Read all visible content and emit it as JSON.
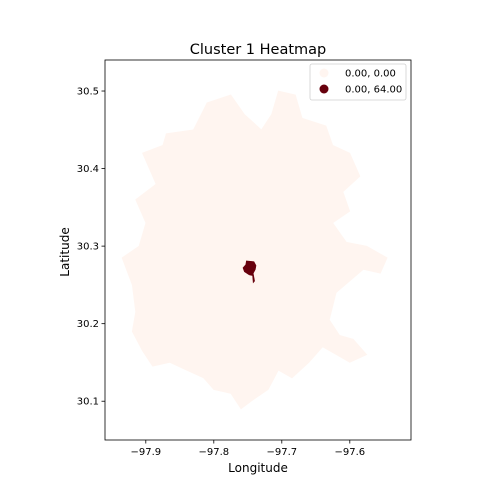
{
  "chart_data": {
    "type": "heatmap",
    "title": "Cluster 1 Heatmap",
    "xlabel": "Longitude",
    "ylabel": "Latitude",
    "xlim": [
      -97.96,
      -97.51
    ],
    "ylim": [
      30.05,
      30.54
    ],
    "xticks": [
      -97.9,
      -97.8,
      -97.7,
      -97.6
    ],
    "xtick_labels": [
      "−97.9",
      "−97.8",
      "−97.7",
      "−97.6"
    ],
    "yticks": [
      30.1,
      30.2,
      30.3,
      30.4,
      30.5
    ],
    "ytick_labels": [
      "30.1",
      "30.2",
      "30.3",
      "30.4",
      "30.5"
    ],
    "grid": false,
    "legend": {
      "placement": "top-right",
      "entries": [
        {
          "label": "0.00,  0.00",
          "color": "#fff5f0"
        },
        {
          "label": "0.00, 64.00",
          "color": "#67000d"
        }
      ]
    },
    "colormap": "Reds",
    "regions": [
      {
        "name": "background-region",
        "value_range": [
          0.0,
          0.0
        ],
        "color": "#fff5f0",
        "outline": [
          [
            -97.915,
            30.215
          ],
          [
            -97.92,
            30.25
          ],
          [
            -97.935,
            30.285
          ],
          [
            -97.91,
            30.3
          ],
          [
            -97.9,
            30.33
          ],
          [
            -97.915,
            30.36
          ],
          [
            -97.885,
            30.38
          ],
          [
            -97.905,
            30.42
          ],
          [
            -97.875,
            30.43
          ],
          [
            -97.87,
            30.445
          ],
          [
            -97.83,
            30.45
          ],
          [
            -97.81,
            30.485
          ],
          [
            -97.775,
            30.495
          ],
          [
            -97.755,
            30.47
          ],
          [
            -97.73,
            30.45
          ],
          [
            -97.715,
            30.47
          ],
          [
            -97.705,
            30.5
          ],
          [
            -97.68,
            30.495
          ],
          [
            -97.67,
            30.465
          ],
          [
            -97.635,
            30.455
          ],
          [
            -97.625,
            30.43
          ],
          [
            -97.6,
            30.42
          ],
          [
            -97.585,
            30.39
          ],
          [
            -97.61,
            30.37
          ],
          [
            -97.6,
            30.345
          ],
          [
            -97.625,
            30.33
          ],
          [
            -97.605,
            30.305
          ],
          [
            -97.575,
            30.3
          ],
          [
            -97.545,
            30.285
          ],
          [
            -97.555,
            30.265
          ],
          [
            -97.58,
            30.27
          ],
          [
            -97.6,
            30.255
          ],
          [
            -97.62,
            30.24
          ],
          [
            -97.63,
            30.205
          ],
          [
            -97.615,
            30.185
          ],
          [
            -97.595,
            30.18
          ],
          [
            -97.575,
            30.16
          ],
          [
            -97.6,
            30.15
          ],
          [
            -97.64,
            30.17
          ],
          [
            -97.66,
            30.15
          ],
          [
            -97.685,
            30.13
          ],
          [
            -97.705,
            30.14
          ],
          [
            -97.72,
            30.115
          ],
          [
            -97.745,
            30.1
          ],
          [
            -97.76,
            30.09
          ],
          [
            -97.775,
            30.11
          ],
          [
            -97.8,
            30.115
          ],
          [
            -97.815,
            30.13
          ],
          [
            -97.84,
            30.14
          ],
          [
            -97.865,
            30.15
          ],
          [
            -97.89,
            30.145
          ],
          [
            -97.905,
            30.165
          ],
          [
            -97.92,
            30.19
          ]
        ]
      },
      {
        "name": "highlight-region",
        "value_range": [
          0.0,
          64.0
        ],
        "color": "#67000d",
        "outline": [
          [
            -97.752,
            30.281
          ],
          [
            -97.741,
            30.28
          ],
          [
            -97.738,
            30.275
          ],
          [
            -97.739,
            30.27
          ],
          [
            -97.742,
            30.265
          ],
          [
            -97.74,
            30.255
          ],
          [
            -97.742,
            30.253
          ],
          [
            -97.743,
            30.262
          ],
          [
            -97.748,
            30.263
          ],
          [
            -97.755,
            30.267
          ],
          [
            -97.757,
            30.272
          ],
          [
            -97.753,
            30.276
          ]
        ]
      }
    ]
  }
}
